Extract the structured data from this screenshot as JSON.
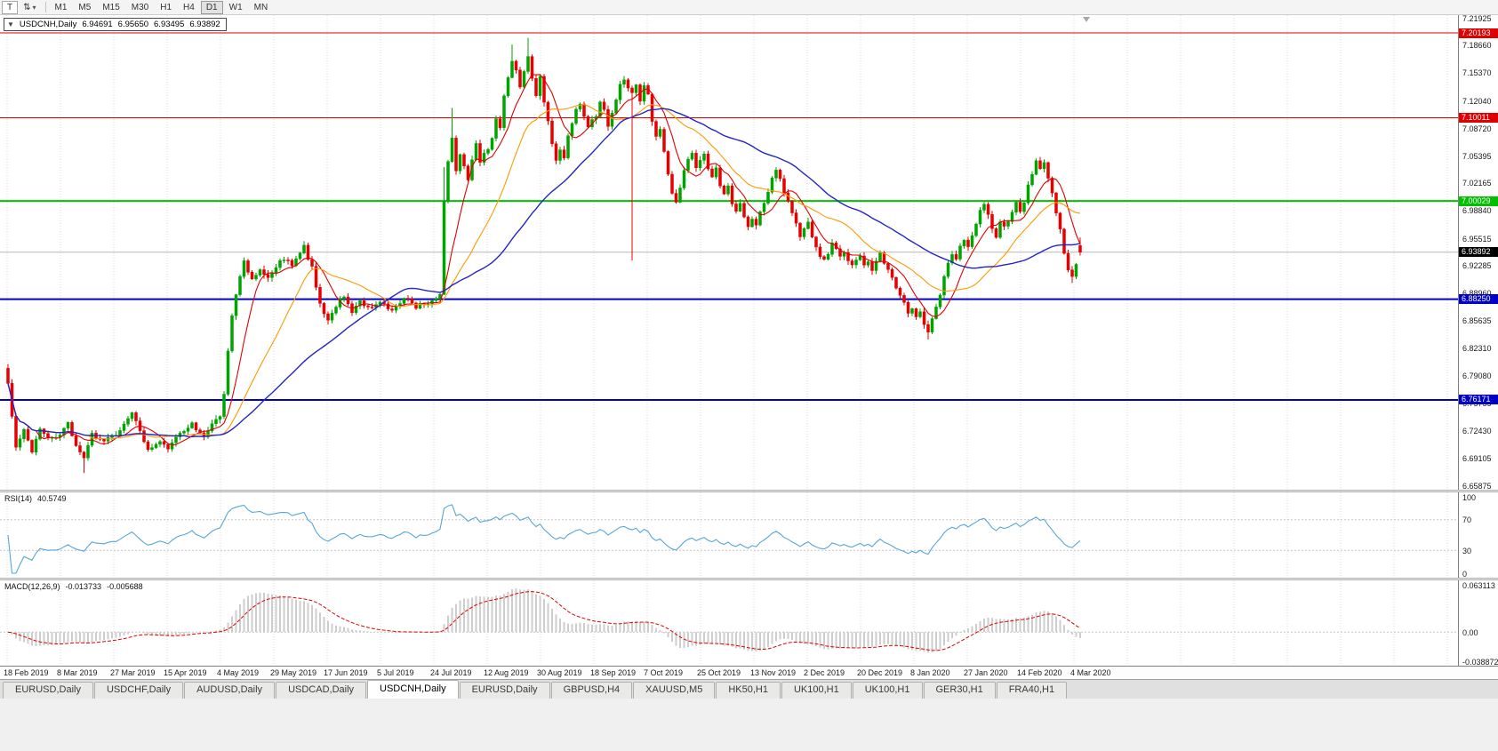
{
  "toolbar": {
    "tool_button": "T",
    "cursor_icon": "⇅",
    "dropdown_icon": "▾",
    "timeframes": [
      {
        "label": "M1",
        "active": false
      },
      {
        "label": "M5",
        "active": false
      },
      {
        "label": "M15",
        "active": false
      },
      {
        "label": "M30",
        "active": false
      },
      {
        "label": "H1",
        "active": false
      },
      {
        "label": "H4",
        "active": false
      },
      {
        "label": "D1",
        "active": true
      },
      {
        "label": "W1",
        "active": false
      },
      {
        "label": "MN",
        "active": false
      }
    ]
  },
  "chart": {
    "title": {
      "collapse_icon": "▼",
      "symbol": "USDCNH,Daily",
      "open": "6.94691",
      "high": "6.95650",
      "low": "6.93495",
      "close": "6.93892"
    },
    "price_scale": [
      "7.21925",
      "7.18660",
      "7.15370",
      "7.12040",
      "7.08720",
      "7.05395",
      "7.02165",
      "6.98840",
      "6.95515",
      "6.92285",
      "6.88960",
      "6.85635",
      "6.82310",
      "6.79080",
      "6.75755",
      "6.72430",
      "6.69105",
      "6.65875"
    ],
    "levels": [
      {
        "label": "7.20193",
        "value": 7.20193,
        "color": "#e00000",
        "width": 1
      },
      {
        "label": "7.10011",
        "value": 7.10011,
        "color": "#e00000",
        "width": 1
      },
      {
        "label": "7.00029",
        "value": 7.00029,
        "color": "#00c000",
        "width": 2
      },
      {
        "label": "6.88250",
        "value": 6.8825,
        "color": "#0000c8",
        "width": 2
      },
      {
        "label": "6.76171",
        "value": 6.76171,
        "color": "#0000c8",
        "width": 2
      }
    ],
    "current_price": {
      "label": "6.93892",
      "value": 6.93892,
      "color": "#000000"
    }
  },
  "rsi": {
    "name": "RSI(14)",
    "value": "40.5749",
    "scale": [
      "100",
      "70",
      "30",
      "0"
    ],
    "level_lines": [
      70,
      30
    ],
    "line_color": "#56a5da"
  },
  "macd": {
    "name": "MACD(12,26,9)",
    "macd_value": "-0.013733",
    "signal_value": "-0.005688",
    "scale": [
      "0.063113",
      "0.00",
      "-0.038872"
    ],
    "bar_color": "#cdcdcd",
    "signal_color": "#e00000"
  },
  "tabs": [
    {
      "label": "EURUSD,Daily",
      "active": false
    },
    {
      "label": "USDCHF,Daily",
      "active": false
    },
    {
      "label": "AUDUSD,Daily",
      "active": false
    },
    {
      "label": "USDCAD,Daily",
      "active": false
    },
    {
      "label": "USDCNH,Daily",
      "active": true
    },
    {
      "label": "EURUSD,Daily",
      "active": false
    },
    {
      "label": "GBPUSD,H4",
      "active": false
    },
    {
      "label": "XAUUSD,M5",
      "active": false
    },
    {
      "label": "HK50,H1",
      "active": false
    },
    {
      "label": "UK100,H1",
      "active": false
    },
    {
      "label": "UK100,H1",
      "active": false
    },
    {
      "label": "GER30,H1",
      "active": false
    },
    {
      "label": "FRA40,H1",
      "active": false
    }
  ],
  "chart_data": {
    "type": "candlestick",
    "symbol": "USDCNH",
    "timeframe": "Daily",
    "x_axis_labels": [
      "18 Feb 2019",
      "8 Mar 2019",
      "27 Mar 2019",
      "15 Apr 2019",
      "4 May 2019",
      "29 May 2019",
      "17 Jun 2019",
      "5 Jul 2019",
      "24 Jul 2019",
      "12 Aug 2019",
      "30 Aug 2019",
      "18 Sep 2019",
      "7 Oct 2019",
      "25 Oct 2019",
      "13 Nov 2019",
      "2 Dec 2019",
      "20 Dec 2019",
      "8 Jan 2020",
      "27 Jan 2020",
      "14 Feb 2020",
      "4 Mar 2020"
    ],
    "y_range": [
      6.654,
      7.2233
    ],
    "candle_count": 269,
    "bull_color": "#00a400",
    "bear_color": "#e80000",
    "price_anchors": [
      [
        0,
        6.783
      ],
      [
        2,
        6.705
      ],
      [
        4,
        6.725
      ],
      [
        6,
        6.697
      ],
      [
        8,
        6.728
      ],
      [
        10,
        6.715
      ],
      [
        13,
        6.72
      ],
      [
        15,
        6.737
      ],
      [
        17,
        6.705
      ],
      [
        19,
        6.692
      ],
      [
        21,
        6.72
      ],
      [
        24,
        6.713
      ],
      [
        27,
        6.72
      ],
      [
        29,
        6.732
      ],
      [
        31,
        6.747
      ],
      [
        33,
        6.725
      ],
      [
        35,
        6.7
      ],
      [
        38,
        6.712
      ],
      [
        40,
        6.705
      ],
      [
        43,
        6.722
      ],
      [
        46,
        6.732
      ],
      [
        49,
        6.718
      ],
      [
        51,
        6.735
      ],
      [
        53,
        6.742
      ],
      [
        54,
        6.77
      ],
      [
        55,
        6.822
      ],
      [
        56,
        6.862
      ],
      [
        57,
        6.89
      ],
      [
        58,
        6.912
      ],
      [
        59,
        6.927
      ],
      [
        61,
        6.905
      ],
      [
        63,
        6.92
      ],
      [
        65,
        6.908
      ],
      [
        67,
        6.922
      ],
      [
        69,
        6.932
      ],
      [
        71,
        6.925
      ],
      [
        73,
        6.937
      ],
      [
        74,
        6.945
      ],
      [
        76,
        6.92
      ],
      [
        78,
        6.878
      ],
      [
        80,
        6.857
      ],
      [
        82,
        6.875
      ],
      [
        84,
        6.886
      ],
      [
        86,
        6.868
      ],
      [
        88,
        6.88
      ],
      [
        90,
        6.873
      ],
      [
        93,
        6.88
      ],
      [
        96,
        6.869
      ],
      [
        99,
        6.884
      ],
      [
        102,
        6.874
      ],
      [
        105,
        6.879
      ],
      [
        107,
        6.884
      ],
      [
        108,
        6.888
      ],
      [
        109,
        7.0
      ],
      [
        110,
        7.048
      ],
      [
        111,
        7.078
      ],
      [
        112,
        7.038
      ],
      [
        113,
        7.058
      ],
      [
        114,
        7.042
      ],
      [
        115,
        7.028
      ],
      [
        116,
        7.052
      ],
      [
        117,
        7.068
      ],
      [
        118,
        7.048
      ],
      [
        119,
        7.058
      ],
      [
        120,
        7.064
      ],
      [
        121,
        7.078
      ],
      [
        122,
        7.098
      ],
      [
        123,
        7.088
      ],
      [
        124,
        7.128
      ],
      [
        125,
        7.148
      ],
      [
        126,
        7.168
      ],
      [
        127,
        7.158
      ],
      [
        128,
        7.138
      ],
      [
        129,
        7.158
      ],
      [
        130,
        7.172
      ],
      [
        131,
        7.148
      ],
      [
        132,
        7.128
      ],
      [
        133,
        7.148
      ],
      [
        134,
        7.118
      ],
      [
        135,
        7.098
      ],
      [
        136,
        7.068
      ],
      [
        137,
        7.048
      ],
      [
        138,
        7.062
      ],
      [
        139,
        7.052
      ],
      [
        140,
        7.078
      ],
      [
        141,
        7.092
      ],
      [
        142,
        7.108
      ],
      [
        143,
        7.118
      ],
      [
        144,
        7.102
      ],
      [
        145,
        7.088
      ],
      [
        146,
        7.098
      ],
      [
        147,
        7.103
      ],
      [
        148,
        7.118
      ],
      [
        149,
        7.108
      ],
      [
        150,
        7.092
      ],
      [
        151,
        7.108
      ],
      [
        152,
        7.122
      ],
      [
        153,
        7.138
      ],
      [
        154,
        7.148
      ],
      [
        155,
        7.138
      ],
      [
        156,
        7.128
      ],
      [
        157,
        7.142
      ],
      [
        158,
        7.118
      ],
      [
        159,
        7.138
      ],
      [
        160,
        7.128
      ],
      [
        161,
        7.098
      ],
      [
        162,
        7.078
      ],
      [
        163,
        7.088
      ],
      [
        164,
        7.058
      ],
      [
        165,
        7.032
      ],
      [
        166,
        7.008
      ],
      [
        167,
        6.998
      ],
      [
        168,
        7.018
      ],
      [
        169,
        7.038
      ],
      [
        170,
        7.052
      ],
      [
        171,
        7.058
      ],
      [
        172,
        7.042
      ],
      [
        173,
        7.048
      ],
      [
        174,
        7.058
      ],
      [
        175,
        7.038
      ],
      [
        176,
        7.028
      ],
      [
        177,
        7.038
      ],
      [
        178,
        7.018
      ],
      [
        179,
        7.008
      ],
      [
        180,
        7.018
      ],
      [
        181,
        6.998
      ],
      [
        182,
        6.988
      ],
      [
        183,
        6.998
      ],
      [
        184,
        6.983
      ],
      [
        185,
        6.968
      ],
      [
        186,
        6.978
      ],
      [
        187,
        6.973
      ],
      [
        188,
        6.988
      ],
      [
        189,
        6.998
      ],
      [
        190,
        7.012
      ],
      [
        191,
        7.028
      ],
      [
        192,
        7.038
      ],
      [
        193,
        7.028
      ],
      [
        194,
        7.012
      ],
      [
        195,
        6.998
      ],
      [
        196,
        6.988
      ],
      [
        197,
        6.973
      ],
      [
        198,
        6.958
      ],
      [
        199,
        6.968
      ],
      [
        200,
        6.973
      ],
      [
        201,
        6.958
      ],
      [
        202,
        6.943
      ],
      [
        203,
        6.933
      ],
      [
        204,
        6.928
      ],
      [
        205,
        6.938
      ],
      [
        206,
        6.948
      ],
      [
        207,
        6.942
      ],
      [
        208,
        6.932
      ],
      [
        209,
        6.938
      ],
      [
        210,
        6.928
      ],
      [
        211,
        6.922
      ],
      [
        212,
        6.928
      ],
      [
        213,
        6.932
      ],
      [
        214,
        6.922
      ],
      [
        215,
        6.928
      ],
      [
        216,
        6.918
      ],
      [
        217,
        6.928
      ],
      [
        218,
        6.938
      ],
      [
        219,
        6.928
      ],
      [
        220,
        6.918
      ],
      [
        221,
        6.908
      ],
      [
        222,
        6.898
      ],
      [
        223,
        6.888
      ],
      [
        224,
        6.878
      ],
      [
        225,
        6.868
      ],
      [
        226,
        6.872
      ],
      [
        227,
        6.862
      ],
      [
        228,
        6.866
      ],
      [
        229,
        6.854
      ],
      [
        230,
        6.845
      ],
      [
        231,
        6.858
      ],
      [
        232,
        6.872
      ],
      [
        233,
        6.888
      ],
      [
        234,
        6.908
      ],
      [
        235,
        6.928
      ],
      [
        236,
        6.938
      ],
      [
        237,
        6.93
      ],
      [
        238,
        6.944
      ],
      [
        239,
        6.954
      ],
      [
        240,
        6.944
      ],
      [
        241,
        6.958
      ],
      [
        242,
        6.974
      ],
      [
        243,
        6.988
      ],
      [
        244,
        6.998
      ],
      [
        245,
        6.984
      ],
      [
        246,
        6.968
      ],
      [
        247,
        6.958
      ],
      [
        248,
        6.973
      ],
      [
        249,
        6.968
      ],
      [
        250,
        6.978
      ],
      [
        251,
        6.988
      ],
      [
        252,
        6.998
      ],
      [
        253,
        6.988
      ],
      [
        254,
        6.998
      ],
      [
        255,
        7.018
      ],
      [
        256,
        7.034
      ],
      [
        257,
        7.048
      ],
      [
        258,
        7.038
      ],
      [
        259,
        7.044
      ],
      [
        260,
        7.028
      ],
      [
        261,
        7.008
      ],
      [
        262,
        6.988
      ],
      [
        263,
        6.968
      ],
      [
        264,
        6.938
      ],
      [
        265,
        6.918
      ],
      [
        266,
        6.908
      ],
      [
        267,
        6.925
      ],
      [
        268,
        6.939
      ]
    ],
    "special_wicks": [
      {
        "i": 19,
        "low": 6.674
      },
      {
        "i": 109,
        "high": 7.041
      },
      {
        "i": 111,
        "high": 7.112
      },
      {
        "i": 126,
        "high": 7.188
      },
      {
        "i": 130,
        "high": 7.196
      },
      {
        "i": 156,
        "low": 6.929
      },
      {
        "i": 230,
        "low": 6.834
      },
      {
        "i": 266,
        "low": 6.902
      }
    ],
    "last_candle": {
      "open": 6.94691,
      "high": 6.9565,
      "low": 6.93495,
      "close": 6.93892
    },
    "moving_averages": [
      {
        "period": 8,
        "color": "#e00000"
      },
      {
        "period": 21,
        "color": "#ff9900"
      },
      {
        "period": 45,
        "color": "#2424c8"
      }
    ],
    "indicators": [
      {
        "type": "RSI",
        "period": 14,
        "last": 40.5749
      },
      {
        "type": "MACD",
        "fast": 12,
        "slow": 26,
        "signal": 9,
        "last_macd": -0.013733,
        "last_signal": -0.005688
      }
    ],
    "horizontal_levels": [
      7.20193,
      7.10011,
      7.00029,
      6.8825,
      6.76171
    ]
  }
}
